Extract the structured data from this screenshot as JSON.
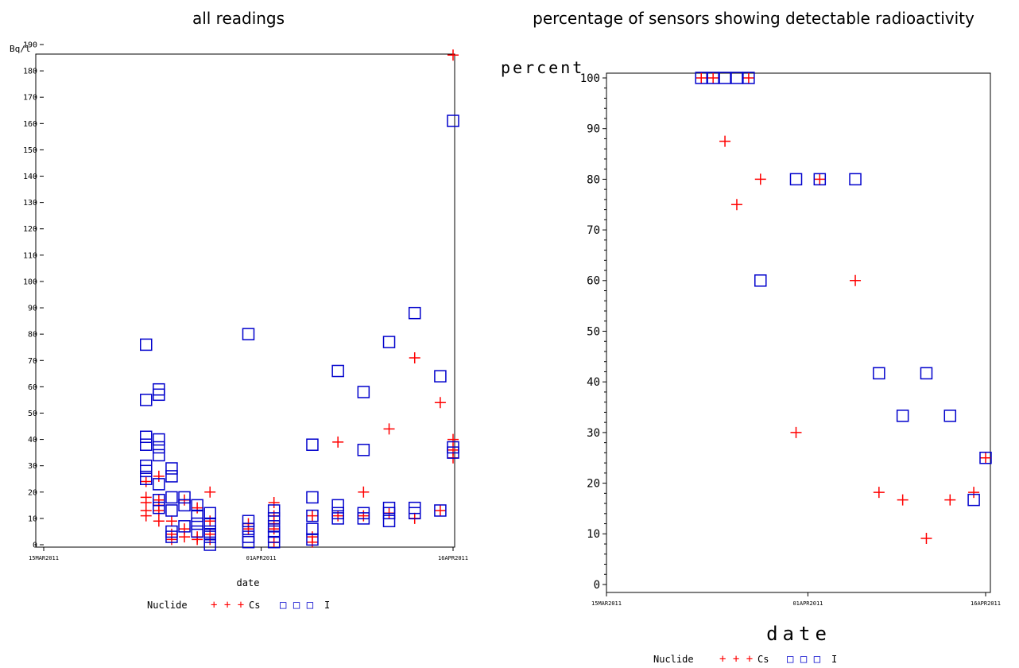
{
  "colors": {
    "Cs": "#ff0000",
    "I": "#0000cc"
  },
  "chart_data": [
    {
      "type": "scatter",
      "title": "all readings",
      "xlabel": "date",
      "ylabel": "Bq/l",
      "x_ticks": [
        "15MAR2011",
        "01APR2011",
        "16APR2011"
      ],
      "xlim": [
        "2011-03-15",
        "2011-04-16"
      ],
      "ylim": [
        0,
        190
      ],
      "y_ticks": [
        0,
        10,
        20,
        30,
        40,
        50,
        60,
        70,
        80,
        90,
        100,
        110,
        120,
        130,
        140,
        150,
        160,
        170,
        180,
        190
      ],
      "legend": {
        "title": "Nuclide",
        "placement": "bottom-center",
        "entries": [
          {
            "symbol": "+ + +",
            "label": "Cs"
          },
          {
            "symbol": "□ □ □",
            "label": "I"
          }
        ]
      },
      "series": [
        {
          "name": "Cs",
          "points": [
            [
              "2011-03-23",
              24
            ],
            [
              "2011-03-23",
              18
            ],
            [
              "2011-03-23",
              16
            ],
            [
              "2011-03-23",
              13
            ],
            [
              "2011-03-23",
              11
            ],
            [
              "2011-03-24",
              26
            ],
            [
              "2011-03-24",
              17
            ],
            [
              "2011-03-24",
              15
            ],
            [
              "2011-03-24",
              13
            ],
            [
              "2011-03-24",
              9
            ],
            [
              "2011-03-25",
              9
            ],
            [
              "2011-03-25",
              4
            ],
            [
              "2011-03-25",
              2
            ],
            [
              "2011-03-26",
              17
            ],
            [
              "2011-03-26",
              6
            ],
            [
              "2011-03-26",
              3
            ],
            [
              "2011-03-27",
              14
            ],
            [
              "2011-03-27",
              3
            ],
            [
              "2011-03-27",
              2
            ],
            [
              "2011-03-28",
              20
            ],
            [
              "2011-03-28",
              9
            ],
            [
              "2011-03-28",
              4
            ],
            [
              "2011-03-28",
              2
            ],
            [
              "2011-03-31",
              8
            ],
            [
              "2011-03-31",
              6
            ],
            [
              "2011-04-02",
              16
            ],
            [
              "2011-04-02",
              11
            ],
            [
              "2011-04-02",
              8
            ],
            [
              "2011-04-02",
              6
            ],
            [
              "2011-04-02",
              1
            ],
            [
              "2011-04-05",
              11
            ],
            [
              "2011-04-05",
              3
            ],
            [
              "2011-04-05",
              1
            ],
            [
              "2011-04-07",
              39
            ],
            [
              "2011-04-07",
              11
            ],
            [
              "2011-04-09",
              20
            ],
            [
              "2011-04-09",
              11
            ],
            [
              "2011-04-11",
              44
            ],
            [
              "2011-04-11",
              12
            ],
            [
              "2011-04-13",
              71
            ],
            [
              "2011-04-13",
              10
            ],
            [
              "2011-04-15",
              54
            ],
            [
              "2011-04-15",
              13
            ],
            [
              "2011-04-16",
              186
            ],
            [
              "2011-04-16",
              40
            ],
            [
              "2011-04-16",
              36
            ],
            [
              "2011-04-16",
              33
            ]
          ]
        },
        {
          "name": "I",
          "points": [
            [
              "2011-03-23",
              76
            ],
            [
              "2011-03-23",
              55
            ],
            [
              "2011-03-23",
              41
            ],
            [
              "2011-03-23",
              38
            ],
            [
              "2011-03-23",
              30
            ],
            [
              "2011-03-23",
              28
            ],
            [
              "2011-03-23",
              25
            ],
            [
              "2011-03-24",
              59
            ],
            [
              "2011-03-24",
              57
            ],
            [
              "2011-03-24",
              40
            ],
            [
              "2011-03-24",
              37
            ],
            [
              "2011-03-24",
              34
            ],
            [
              "2011-03-24",
              23
            ],
            [
              "2011-03-24",
              17
            ],
            [
              "2011-03-24",
              14
            ],
            [
              "2011-03-25",
              29
            ],
            [
              "2011-03-25",
              26
            ],
            [
              "2011-03-25",
              18
            ],
            [
              "2011-03-25",
              13
            ],
            [
              "2011-03-25",
              5
            ],
            [
              "2011-03-25",
              3
            ],
            [
              "2011-03-26",
              18
            ],
            [
              "2011-03-26",
              15
            ],
            [
              "2011-03-26",
              7
            ],
            [
              "2011-03-27",
              15
            ],
            [
              "2011-03-27",
              11
            ],
            [
              "2011-03-27",
              8
            ],
            [
              "2011-03-27",
              5
            ],
            [
              "2011-03-28",
              12
            ],
            [
              "2011-03-28",
              8
            ],
            [
              "2011-03-28",
              5
            ],
            [
              "2011-03-28",
              4
            ],
            [
              "2011-03-28",
              3
            ],
            [
              "2011-03-28",
              0
            ],
            [
              "2011-03-31",
              80
            ],
            [
              "2011-03-31",
              9
            ],
            [
              "2011-03-31",
              6
            ],
            [
              "2011-03-31",
              3
            ],
            [
              "2011-03-31",
              1
            ],
            [
              "2011-04-02",
              13
            ],
            [
              "2011-04-02",
              10
            ],
            [
              "2011-04-02",
              7
            ],
            [
              "2011-04-02",
              5
            ],
            [
              "2011-04-02",
              3
            ],
            [
              "2011-04-02",
              1
            ],
            [
              "2011-04-05",
              38
            ],
            [
              "2011-04-05",
              18
            ],
            [
              "2011-04-05",
              11
            ],
            [
              "2011-04-05",
              6
            ],
            [
              "2011-04-05",
              2
            ],
            [
              "2011-04-07",
              66
            ],
            [
              "2011-04-07",
              15
            ],
            [
              "2011-04-07",
              12
            ],
            [
              "2011-04-07",
              10
            ],
            [
              "2011-04-09",
              58
            ],
            [
              "2011-04-09",
              36
            ],
            [
              "2011-04-09",
              12
            ],
            [
              "2011-04-09",
              10
            ],
            [
              "2011-04-11",
              77
            ],
            [
              "2011-04-11",
              14
            ],
            [
              "2011-04-11",
              12
            ],
            [
              "2011-04-11",
              9
            ],
            [
              "2011-04-13",
              88
            ],
            [
              "2011-04-13",
              14
            ],
            [
              "2011-04-13",
              12
            ],
            [
              "2011-04-15",
              64
            ],
            [
              "2011-04-15",
              13
            ],
            [
              "2011-04-16",
              161
            ],
            [
              "2011-04-16",
              37
            ],
            [
              "2011-04-16",
              35
            ]
          ]
        }
      ]
    },
    {
      "type": "scatter",
      "title": "percentage of sensors showing detectable radioactivity",
      "xlabel": "date",
      "ylabel": "percent",
      "x_ticks": [
        "15MAR2011",
        "01APR2011",
        "16APR2011"
      ],
      "xlim": [
        "2011-03-15",
        "2011-04-16"
      ],
      "ylim": [
        0,
        100
      ],
      "y_ticks": [
        0,
        10,
        20,
        30,
        40,
        50,
        60,
        70,
        80,
        90,
        100
      ],
      "legend": {
        "title": "Nuclide",
        "placement": "bottom-center",
        "entries": [
          {
            "symbol": "+ + +",
            "label": "Cs"
          },
          {
            "symbol": "□ □ □",
            "label": "I"
          }
        ]
      },
      "series": [
        {
          "name": "Cs",
          "points": [
            [
              "2011-03-23",
              100
            ],
            [
              "2011-03-24",
              100
            ],
            [
              "2011-03-25",
              87.5
            ],
            [
              "2011-03-26",
              75
            ],
            [
              "2011-03-27",
              100
            ],
            [
              "2011-03-28",
              80
            ],
            [
              "2011-03-31",
              30
            ],
            [
              "2011-04-02",
              80
            ],
            [
              "2011-04-05",
              60
            ],
            [
              "2011-04-07",
              18.2
            ],
            [
              "2011-04-09",
              16.7
            ],
            [
              "2011-04-11",
              9.1
            ],
            [
              "2011-04-13",
              16.7
            ],
            [
              "2011-04-15",
              18.2
            ],
            [
              "2011-04-16",
              25
            ]
          ]
        },
        {
          "name": "I",
          "points": [
            [
              "2011-03-23",
              100
            ],
            [
              "2011-03-24",
              100
            ],
            [
              "2011-03-25",
              100
            ],
            [
              "2011-03-26",
              100
            ],
            [
              "2011-03-27",
              100
            ],
            [
              "2011-03-28",
              60
            ],
            [
              "2011-03-31",
              80
            ],
            [
              "2011-04-02",
              80
            ],
            [
              "2011-04-05",
              80
            ],
            [
              "2011-04-07",
              41.7
            ],
            [
              "2011-04-09",
              33.3
            ],
            [
              "2011-04-11",
              41.7
            ],
            [
              "2011-04-13",
              33.3
            ],
            [
              "2011-04-15",
              16.7
            ],
            [
              "2011-04-16",
              25
            ]
          ]
        }
      ]
    }
  ]
}
